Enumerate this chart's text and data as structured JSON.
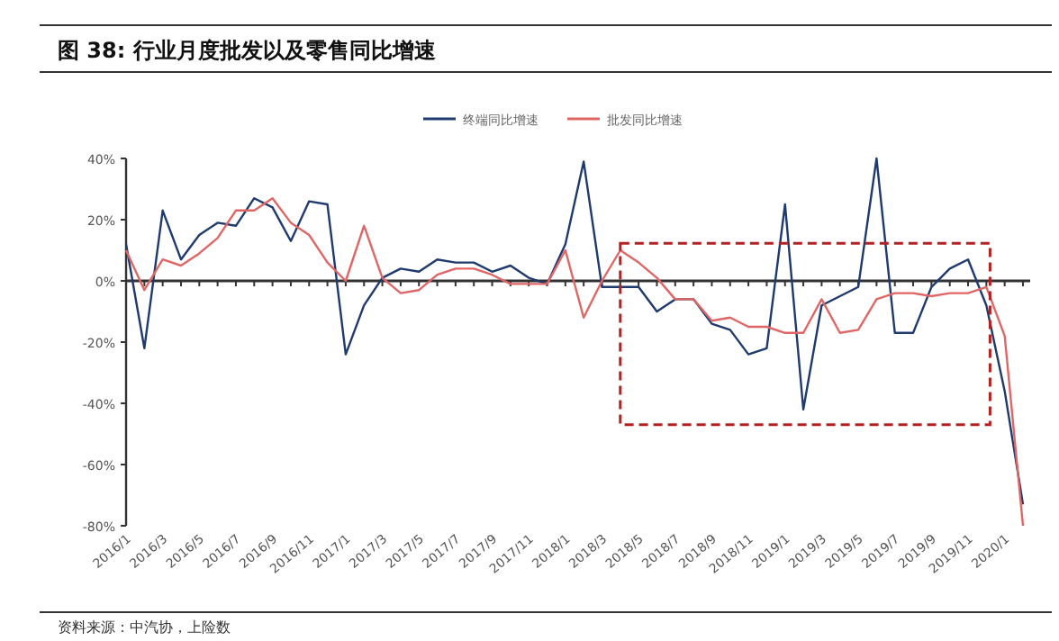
{
  "chart_data": {
    "type": "line",
    "title": "图 38:  行业月度批发以及零售同比增速",
    "categories": [
      "2016/1",
      null,
      "2016/3",
      null,
      "2016/5",
      null,
      "2016/7",
      null,
      "2016/9",
      null,
      "2016/11",
      null,
      "2017/1",
      null,
      "2017/3",
      null,
      "2017/5",
      null,
      "2017/7",
      null,
      "2017/9",
      null,
      "2017/11",
      null,
      "2018/1",
      null,
      "2018/3",
      null,
      "2018/5",
      null,
      "2018/7",
      null,
      "2018/9",
      null,
      "2018/11",
      null,
      "2019/1",
      null,
      "2019/3",
      null,
      "2019/5",
      null,
      "2019/7",
      null,
      "2019/9",
      null,
      "2019/11",
      null,
      "2020/1",
      null
    ],
    "series": [
      {
        "name": "终端同比增速",
        "color": "#1f3a6e",
        "values": [
          12,
          -22,
          23,
          7,
          15,
          19,
          18,
          27,
          24,
          13,
          26,
          25,
          -24,
          -8,
          1,
          4,
          3,
          7,
          6,
          6,
          3,
          5,
          1,
          -1,
          12,
          39,
          -2,
          -2,
          -2,
          -10,
          -6,
          -6,
          -14,
          -16,
          -24,
          -22,
          25,
          -42,
          -8,
          -5,
          -2,
          40,
          -17,
          -17,
          -2,
          4,
          7,
          -8,
          -36,
          -73
        ]
      },
      {
        "name": "批发同比增速",
        "color": "#e06666",
        "values": [
          10,
          -3,
          7,
          5,
          9,
          14,
          23,
          23,
          27,
          19,
          15,
          6,
          0,
          18,
          1,
          -4,
          -3,
          2,
          4,
          4,
          2,
          -1,
          -1,
          -1,
          10,
          -12,
          0,
          10,
          6,
          1,
          -6,
          -6,
          -13,
          -12,
          -15,
          -15,
          -17,
          -17,
          -6,
          -17,
          -16,
          -6,
          -4,
          -4,
          -5,
          -4,
          -4,
          -2,
          -18,
          -80
        ]
      }
    ],
    "ylim": [
      -80,
      40
    ],
    "yticks": [
      {
        "value": 40,
        "label": "40%"
      },
      {
        "value": 20,
        "label": "20%"
      },
      {
        "value": 0,
        "label": "0%"
      },
      {
        "value": -20,
        "label": "-20%"
      },
      {
        "value": -40,
        "label": "-40%"
      },
      {
        "value": -60,
        "label": "-60%"
      },
      {
        "value": -80,
        "label": "-80%"
      }
    ],
    "legend": "top",
    "annotations": [
      "资料来源：中汽协，上险数"
    ]
  }
}
